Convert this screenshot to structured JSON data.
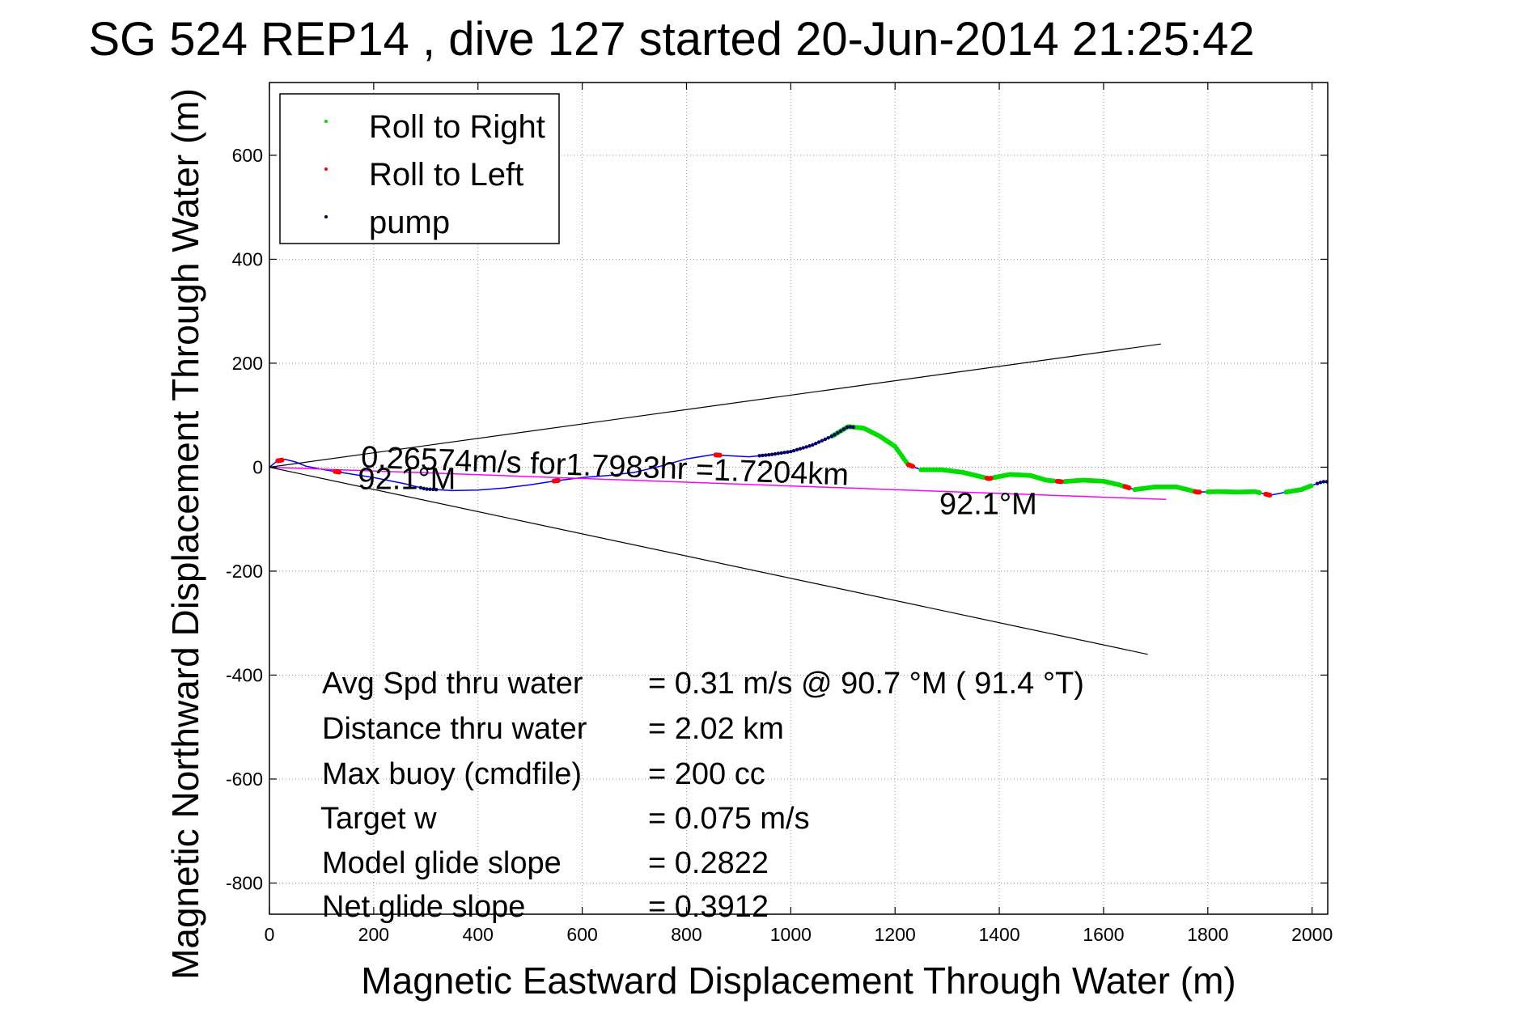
{
  "chart_data": {
    "type": "line",
    "title": "SG 524   REP14  , dive 127 started 20-Jun-2014 21:25:42",
    "xlabel": "Magnetic Eastward Displacement Through Water (m)",
    "ylabel": "Magnetic Northward Displacement Through Water (m)",
    "xlim": [
      0,
      2030
    ],
    "ylim": [
      -860,
      740
    ],
    "xticks": [
      0,
      200,
      400,
      600,
      800,
      1000,
      1200,
      1400,
      1600,
      1800,
      2000
    ],
    "yticks": [
      -800,
      -600,
      -400,
      -200,
      0,
      200,
      400,
      600
    ],
    "grid": true,
    "legend_placement": "top-left",
    "legend": [
      {
        "label": "Roll to Right",
        "color": "#00dd00"
      },
      {
        "label": "Roll to Left",
        "color": "#ff0000"
      },
      {
        "label": "pump",
        "color": "#000066"
      }
    ],
    "colors": {
      "track": "#0000ff",
      "course": "#ff00ff",
      "cone": "#000000"
    },
    "series": [
      {
        "name": "track",
        "x": [
          0,
          15,
          30,
          50,
          70,
          100,
          150,
          200,
          260,
          300,
          350,
          400,
          450,
          500,
          550,
          600,
          650,
          700,
          750,
          800,
          850,
          880,
          920,
          960,
          1000,
          1040,
          1080,
          1110,
          1140,
          1170,
          1200,
          1225,
          1250,
          1290,
          1330,
          1380,
          1420,
          1460,
          1490,
          1520,
          1560,
          1600,
          1630,
          1660,
          1700,
          1740,
          1780,
          1820,
          1860,
          1890,
          1920,
          1950,
          1980,
          2000,
          2020
        ],
        "y": [
          0,
          12,
          15,
          10,
          2,
          -4,
          -12,
          -20,
          -32,
          -42,
          -45,
          -44,
          -40,
          -34,
          -26,
          -20,
          -16,
          -10,
          2,
          16,
          24,
          22,
          20,
          24,
          30,
          42,
          60,
          78,
          75,
          60,
          40,
          5,
          -5,
          -5,
          -10,
          -22,
          -14,
          -16,
          -25,
          -28,
          -25,
          -27,
          -34,
          -43,
          -38,
          -38,
          -48,
          -47,
          -48,
          -47,
          -54,
          -48,
          -43,
          -35,
          -28
        ]
      },
      {
        "name": "course",
        "x": [
          0,
          1720
        ],
        "y": [
          0,
          -62
        ]
      },
      {
        "name": "cone-upper",
        "x": [
          0,
          1710
        ],
        "y": [
          0,
          237
        ]
      },
      {
        "name": "cone-lower",
        "x": [
          0,
          1685
        ],
        "y": [
          0,
          -360
        ]
      }
    ],
    "markers": {
      "roll_right_ranges": [
        [
          1080,
          1225
        ],
        [
          1250,
          1370
        ],
        [
          1390,
          1505
        ],
        [
          1525,
          1640
        ],
        [
          1660,
          1775
        ],
        [
          1800,
          1900
        ],
        [
          1950,
          2000
        ]
      ],
      "roll_left_points": [
        [
          20,
          14
        ],
        [
          130,
          -12
        ],
        [
          550,
          -26
        ],
        [
          860,
          24
        ],
        [
          1230,
          0
        ],
        [
          1380,
          -22
        ],
        [
          1515,
          -28
        ],
        [
          1645,
          -43
        ],
        [
          1780,
          -48
        ],
        [
          1915,
          -54
        ]
      ],
      "pump_ranges": [
        [
          940,
          1120
        ],
        [
          290,
          320
        ],
        [
          2010,
          2030
        ]
      ]
    },
    "annotations": [
      {
        "text": "0.26574m/s for1.7983hr =1.7204km",
        "x": 175,
        "y": 0
      },
      {
        "text": "92.1°M",
        "x": 170,
        "y": -42
      },
      {
        "text": "92.1°M",
        "x": 1285,
        "y": -90
      }
    ],
    "stats": [
      {
        "label": "Avg Spd thru water",
        "value": "=  0.31 m/s @  90.7 °M ( 91.4 °T)"
      },
      {
        "label": "Distance thru water",
        "value": "=  2.02 km"
      },
      {
        "label": "Max buoy (cmdfile)",
        "value": "= 200 cc"
      },
      {
        "label": "Target w",
        "value": "= 0.075 m/s"
      },
      {
        "label": "Model glide slope",
        "value": "= 0.2822"
      },
      {
        "label": "Net glide slope",
        "value": "= 0.3912"
      }
    ]
  }
}
